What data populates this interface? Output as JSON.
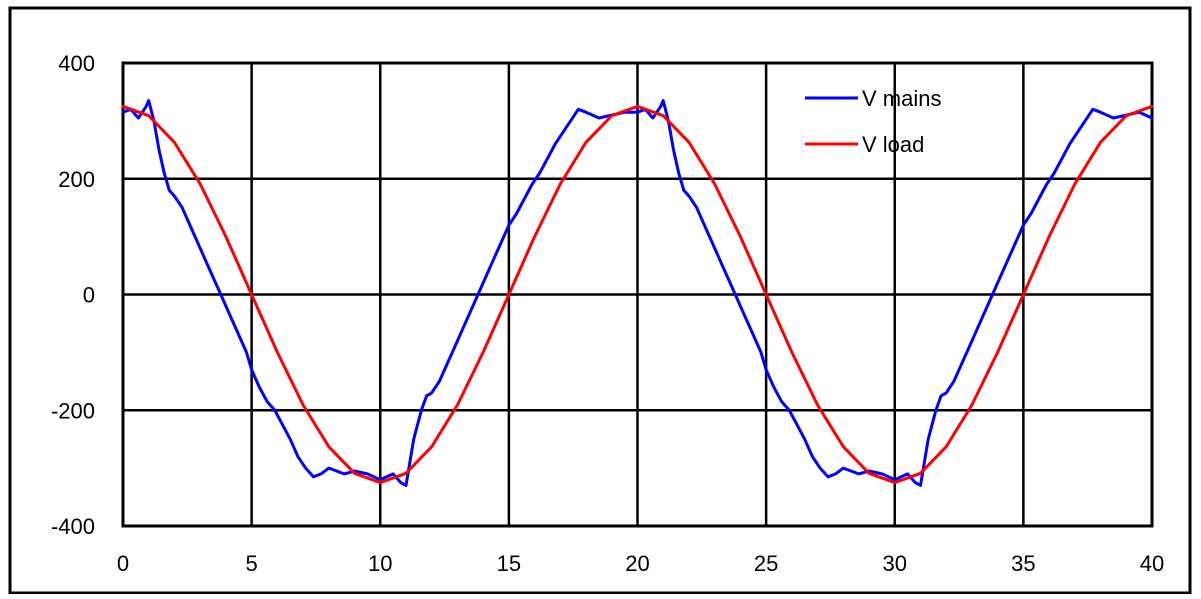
{
  "chart_data": {
    "type": "line",
    "title": "",
    "xlabel": "",
    "ylabel": "",
    "xlim": [
      0,
      40
    ],
    "ylim": [
      -400,
      400
    ],
    "x_ticks": [
      0,
      5,
      10,
      15,
      20,
      25,
      30,
      35,
      40
    ],
    "y_ticks": [
      -400,
      -200,
      0,
      200,
      400
    ],
    "x_tick_labels": [
      "0",
      "5",
      "10",
      "15",
      "20",
      "25",
      "30",
      "35",
      "40"
    ],
    "y_tick_labels": [
      "-400",
      "-200",
      "0",
      "200",
      "400"
    ],
    "grid": true,
    "legend_position": "top-right",
    "series": [
      {
        "name": "V mains",
        "color": "#0000ff",
        "x": [
          0,
          0.3,
          0.6,
          0.9,
          1.0,
          1.2,
          1.4,
          1.6,
          1.8,
          2.0,
          2.3,
          2.6,
          2.9,
          3.2,
          3.5,
          3.8,
          4.0,
          4.2,
          4.5,
          4.8,
          5.0,
          5.3,
          5.6,
          5.9,
          6.2,
          6.5,
          6.8,
          7.1,
          7.4,
          7.7,
          8.0,
          8.3,
          8.6,
          9.0,
          9.5,
          10.0,
          10.5,
          10.8,
          11.0,
          11.3,
          11.6,
          11.8,
          12.0,
          12.3,
          12.6,
          12.9,
          13.2,
          13.5,
          13.8,
          14.1,
          14.4,
          14.7,
          15.0,
          15.3,
          15.6,
          15.9,
          16.2,
          16.5,
          16.8,
          17.1,
          17.4,
          17.7,
          18.0,
          18.5,
          19.0,
          19.5,
          20.0,
          20.3,
          20.6,
          20.9,
          21.0,
          21.2,
          21.4,
          21.6,
          21.8,
          22.0,
          22.3,
          22.6,
          22.9,
          23.2,
          23.5,
          23.8,
          24.0,
          24.2,
          24.5,
          24.8,
          25.0,
          25.3,
          25.6,
          25.9,
          26.2,
          26.5,
          26.8,
          27.1,
          27.4,
          27.7,
          28.0,
          28.3,
          28.6,
          29.0,
          29.5,
          30.0,
          30.5,
          30.8,
          31.0,
          31.3,
          31.6,
          31.8,
          32.0,
          32.3,
          32.6,
          32.9,
          33.2,
          33.5,
          33.8,
          34.1,
          34.4,
          34.7,
          35.0,
          35.3,
          35.6,
          35.9,
          36.2,
          36.5,
          36.8,
          37.1,
          37.4,
          37.7,
          38.0,
          38.5,
          39.0,
          39.5,
          40.0
        ],
        "y": [
          315,
          320,
          305,
          325,
          335,
          300,
          250,
          210,
          180,
          170,
          150,
          120,
          90,
          60,
          30,
          0,
          -20,
          -40,
          -70,
          -100,
          -130,
          -160,
          -185,
          -200,
          -225,
          -250,
          -280,
          -300,
          -315,
          -310,
          -300,
          -305,
          -310,
          -305,
          -310,
          -320,
          -310,
          -325,
          -330,
          -250,
          -200,
          -175,
          -170,
          -150,
          -120,
          -90,
          -60,
          -30,
          0,
          30,
          60,
          90,
          120,
          140,
          165,
          190,
          210,
          235,
          260,
          280,
          300,
          320,
          315,
          305,
          310,
          315,
          315,
          320,
          305,
          325,
          335,
          300,
          250,
          210,
          180,
          170,
          150,
          120,
          90,
          60,
          30,
          0,
          -20,
          -40,
          -70,
          -100,
          -130,
          -160,
          -185,
          -200,
          -225,
          -250,
          -280,
          -300,
          -315,
          -310,
          -300,
          -305,
          -310,
          -305,
          -310,
          -320,
          -310,
          -325,
          -330,
          -250,
          -200,
          -175,
          -170,
          -150,
          -120,
          -90,
          -60,
          -30,
          0,
          30,
          60,
          90,
          120,
          140,
          165,
          190,
          210,
          235,
          260,
          280,
          300,
          320,
          315,
          305,
          310,
          315,
          305
        ]
      },
      {
        "name": "V load",
        "color": "#ff0000",
        "x": [
          0,
          1,
          2,
          3,
          4,
          5,
          6,
          7,
          8,
          9,
          10,
          11,
          12,
          13,
          14,
          15,
          16,
          17,
          18,
          19,
          20,
          21,
          22,
          23,
          24,
          25,
          26,
          27,
          28,
          29,
          30,
          31,
          32,
          33,
          34,
          35,
          36,
          37,
          38,
          39,
          40
        ],
        "y": [
          325,
          309,
          263,
          191,
          100,
          0,
          -100,
          -191,
          -263,
          -309,
          -325,
          -309,
          -263,
          -191,
          -100,
          0,
          100,
          191,
          263,
          309,
          325,
          309,
          263,
          191,
          100,
          0,
          -100,
          -191,
          -263,
          -309,
          -325,
          -309,
          -263,
          -191,
          -100,
          0,
          100,
          191,
          263,
          309,
          325
        ]
      }
    ]
  }
}
